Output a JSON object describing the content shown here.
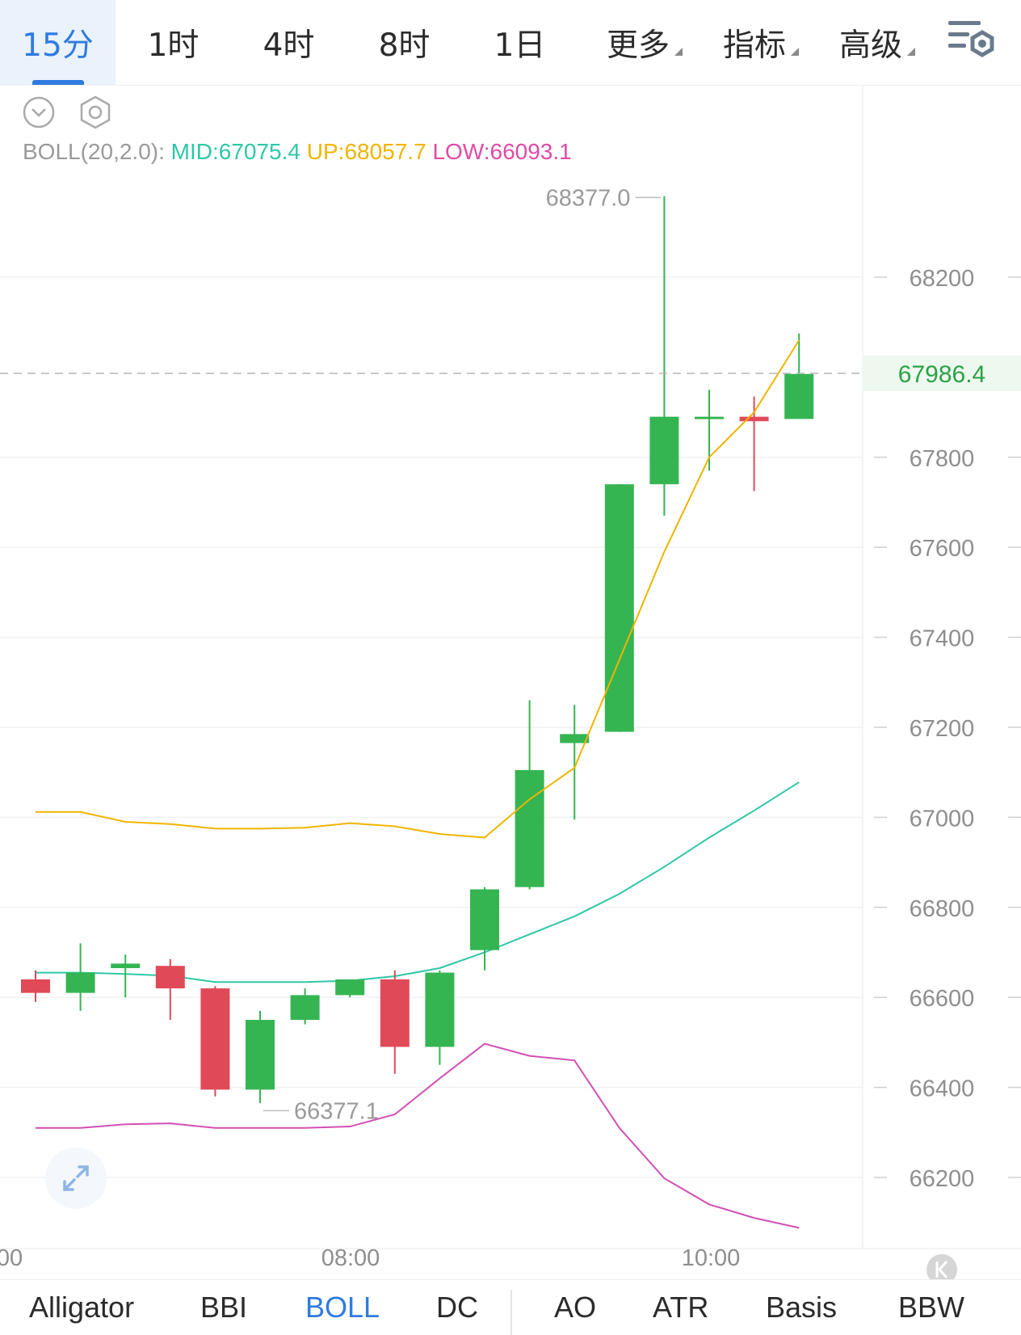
{
  "timeframes": [
    {
      "label": "15分",
      "active": true
    },
    {
      "label": "1时"
    },
    {
      "label": "4时"
    },
    {
      "label": "8时"
    },
    {
      "label": "1日"
    },
    {
      "label": "更多",
      "dropdown": true
    },
    {
      "label": "指标",
      "dropdown": true
    },
    {
      "label": "高级",
      "dropdown": true
    }
  ],
  "indicator_header": {
    "name": "BOLL(20,2.0):",
    "mid": "MID:67075.4",
    "up": "UP:68057.7",
    "low": "LOW:66093.1"
  },
  "chart_data": {
    "type": "candlestick",
    "y_range": [
      66020,
      68520
    ],
    "y_ticks": [
      68200,
      67800,
      67600,
      67400,
      67200,
      67000,
      66800,
      66600,
      66400,
      66200
    ],
    "y_tick_labels": [
      "68200",
      "67800",
      "67600",
      "67400",
      "67200",
      "67000",
      "66800",
      "66600",
      "66400",
      "66200"
    ],
    "x_tick_labels": [
      "00",
      "08:00",
      "10:00"
    ],
    "current_price": "67986.4",
    "high_label": "68377.0",
    "low_label": "66377.1",
    "candles": [
      {
        "o": 66640,
        "h": 66660,
        "l": 66590,
        "c": 66610
      },
      {
        "o": 66610,
        "h": 66720,
        "l": 66570,
        "c": 66655
      },
      {
        "o": 66665,
        "h": 66695,
        "l": 66600,
        "c": 66675
      },
      {
        "o": 66670,
        "h": 66685,
        "l": 66550,
        "c": 66620
      },
      {
        "o": 66620,
        "h": 66625,
        "l": 66380,
        "c": 66395
      },
      {
        "o": 66395,
        "h": 66570,
        "l": 66365,
        "c": 66550
      },
      {
        "o": 66550,
        "h": 66620,
        "l": 66540,
        "c": 66605
      },
      {
        "o": 66605,
        "h": 66640,
        "l": 66600,
        "c": 66640
      },
      {
        "o": 66640,
        "h": 66660,
        "l": 66430,
        "c": 66490
      },
      {
        "o": 66490,
        "h": 66660,
        "l": 66450,
        "c": 66655
      },
      {
        "o": 66705,
        "h": 66845,
        "l": 66660,
        "c": 66840
      },
      {
        "o": 66845,
        "h": 67260,
        "l": 66840,
        "c": 67105
      },
      {
        "o": 67165,
        "h": 67250,
        "l": 66995,
        "c": 67185
      },
      {
        "o": 67190,
        "h": 67740,
        "l": 67190,
        "c": 67740
      },
      {
        "o": 67740,
        "h": 68380,
        "l": 67670,
        "c": 67890
      },
      {
        "o": 67890,
        "h": 67950,
        "l": 67770,
        "c": 67890
      },
      {
        "o": 67890,
        "h": 67935,
        "l": 67725,
        "c": 67880
      },
      {
        "o": 67885,
        "h": 68075,
        "l": 67890,
        "c": 67985
      }
    ],
    "boll_up": [
      67012,
      67012,
      66990,
      66985,
      66975,
      66975,
      66977,
      66987,
      66980,
      66963,
      66955,
      67040,
      67110,
      67350,
      67590,
      67800,
      67900,
      68060
    ],
    "boll_mid": [
      66655,
      66655,
      66652,
      66648,
      66634,
      66634,
      66634,
      66637,
      66647,
      66665,
      66700,
      66740,
      66780,
      66830,
      66890,
      66955,
      67015,
      67078
    ],
    "boll_low": [
      66310,
      66310,
      66318,
      66320,
      66310,
      66310,
      66310,
      66313,
      66340,
      66420,
      66497,
      66470,
      66460,
      66310,
      66198,
      66140,
      66110,
      66088
    ]
  },
  "colors": {
    "up": "#35b552",
    "down": "#e04a58",
    "boll_up": "#f0b400",
    "boll_mid": "#2ec7a6",
    "boll_low": "#d24fb5",
    "accent": "#2f7be0"
  },
  "bottom_tabs": [
    {
      "label": "Alligator"
    },
    {
      "label": "BBI"
    },
    {
      "label": "BOLL",
      "active": true
    },
    {
      "label": "DC"
    },
    {
      "label": "AO"
    },
    {
      "label": "ATR"
    },
    {
      "label": "Basis"
    },
    {
      "label": "BBW"
    }
  ]
}
